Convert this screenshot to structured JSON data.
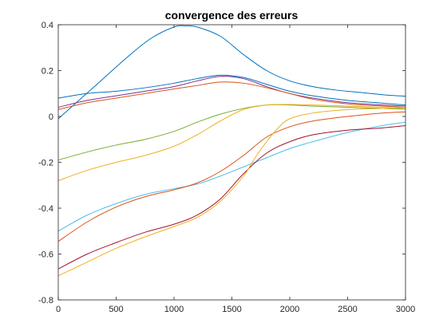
{
  "chart_data": {
    "type": "line",
    "title": "convergence des erreurs",
    "xlabel": "",
    "ylabel": "",
    "xlim": [
      0,
      3000
    ],
    "ylim": [
      -0.8,
      0.4
    ],
    "xticks": [
      0,
      500,
      1000,
      1500,
      2000,
      2500,
      3000
    ],
    "yticks": [
      -0.8,
      -0.6,
      -0.4,
      -0.2,
      0,
      0.2,
      0.4
    ],
    "grid": false,
    "legend": "none",
    "series": [
      {
        "color": "#0072BD",
        "x": [
          0,
          200,
          400,
          600,
          800,
          1000,
          1100,
          1200,
          1400,
          1600,
          1800,
          2000,
          2200,
          2400,
          2600,
          2800,
          3000
        ],
        "y": [
          -0.01,
          0.08,
          0.17,
          0.26,
          0.34,
          0.39,
          0.395,
          0.39,
          0.35,
          0.27,
          0.2,
          0.155,
          0.13,
          0.115,
          0.105,
          0.095,
          0.088
        ]
      },
      {
        "color": "#7E2F8E",
        "x": [
          0,
          250,
          500,
          750,
          1000,
          1200,
          1400,
          1600,
          1800,
          2000,
          2200,
          2500,
          2800,
          3000
        ],
        "y": [
          0.04,
          0.07,
          0.09,
          0.11,
          0.13,
          0.155,
          0.175,
          0.165,
          0.13,
          0.1,
          0.08,
          0.06,
          0.05,
          0.045
        ]
      },
      {
        "color": "#0072BD",
        "x": [
          0,
          250,
          500,
          750,
          1000,
          1200,
          1400,
          1600,
          1800,
          2000,
          2200,
          2500,
          2800,
          3000
        ],
        "y": [
          0.08,
          0.1,
          0.11,
          0.125,
          0.145,
          0.165,
          0.18,
          0.17,
          0.14,
          0.11,
          0.09,
          0.07,
          0.058,
          0.05
        ]
      },
      {
        "color": "#D95319",
        "x": [
          0,
          250,
          500,
          750,
          1000,
          1200,
          1400,
          1600,
          1800,
          2000,
          2200,
          2500,
          2800,
          3000
        ],
        "y": [
          0.03,
          0.06,
          0.08,
          0.1,
          0.12,
          0.135,
          0.15,
          0.145,
          0.125,
          0.1,
          0.075,
          0.055,
          0.045,
          0.04
        ]
      },
      {
        "color": "#77AC30",
        "x": [
          0,
          250,
          500,
          750,
          1000,
          1200,
          1400,
          1600,
          1800,
          2000,
          2200,
          2500,
          2800,
          3000
        ],
        "y": [
          -0.19,
          -0.155,
          -0.125,
          -0.1,
          -0.065,
          -0.025,
          0.01,
          0.035,
          0.05,
          0.05,
          0.045,
          0.04,
          0.035,
          0.032
        ]
      },
      {
        "color": "#EDB120",
        "x": [
          0,
          250,
          500,
          750,
          1000,
          1200,
          1400,
          1600,
          1800,
          2000,
          2200,
          2500,
          2800,
          3000
        ],
        "y": [
          -0.28,
          -0.235,
          -0.2,
          -0.17,
          -0.13,
          -0.08,
          -0.02,
          0.03,
          0.05,
          0.052,
          0.05,
          0.045,
          0.04,
          0.035
        ]
      },
      {
        "color": "#4DBEEE",
        "x": [
          0,
          250,
          500,
          750,
          1000,
          1200,
          1400,
          1600,
          1800,
          2000,
          2200,
          2500,
          2800,
          3000
        ],
        "y": [
          -0.5,
          -0.43,
          -0.38,
          -0.34,
          -0.315,
          -0.295,
          -0.26,
          -0.22,
          -0.18,
          -0.14,
          -0.11,
          -0.07,
          -0.04,
          -0.025
        ]
      },
      {
        "color": "#D95319",
        "x": [
          0,
          250,
          500,
          750,
          1000,
          1200,
          1400,
          1600,
          1800,
          2000,
          2200,
          2500,
          2800,
          3000
        ],
        "y": [
          -0.545,
          -0.46,
          -0.395,
          -0.35,
          -0.32,
          -0.29,
          -0.24,
          -0.17,
          -0.09,
          -0.045,
          -0.02,
          0.0,
          0.015,
          0.02
        ]
      },
      {
        "color": "#A2142F",
        "x": [
          0,
          250,
          500,
          750,
          1000,
          1200,
          1400,
          1600,
          1800,
          2000,
          2200,
          2500,
          2800,
          3000
        ],
        "y": [
          -0.665,
          -0.6,
          -0.55,
          -0.505,
          -0.47,
          -0.43,
          -0.36,
          -0.25,
          -0.16,
          -0.11,
          -0.08,
          -0.06,
          -0.05,
          -0.04
        ]
      },
      {
        "color": "#EDB120",
        "x": [
          0,
          250,
          500,
          750,
          1000,
          1200,
          1400,
          1600,
          1700,
          1800,
          1900,
          2000,
          2200,
          2500,
          2800,
          3000
        ],
        "y": [
          -0.695,
          -0.635,
          -0.575,
          -0.525,
          -0.48,
          -0.44,
          -0.37,
          -0.26,
          -0.18,
          -0.11,
          -0.05,
          -0.01,
          0.015,
          0.03,
          0.035,
          0.04
        ]
      }
    ]
  }
}
